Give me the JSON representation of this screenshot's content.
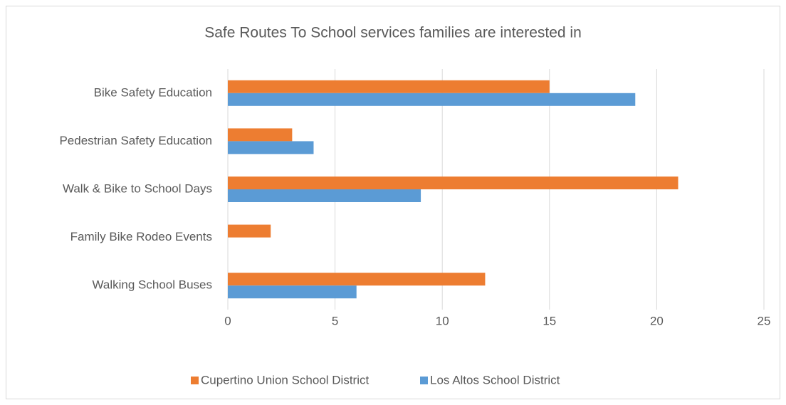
{
  "chart_data": {
    "type": "bar",
    "orientation": "horizontal",
    "title": "Safe Routes To School services families are interested in",
    "categories": [
      "Bike Safety Education",
      "Pedestrian Safety Education",
      "Walk & Bike to School Days",
      "Family Bike Rodeo Events",
      "Walking School Buses"
    ],
    "series": [
      {
        "name": "Cupertino Union School District",
        "color": "#ed7d31",
        "values": [
          15,
          3,
          21,
          2,
          12
        ]
      },
      {
        "name": "Los Altos School District",
        "color": "#5b9bd5",
        "values": [
          19,
          4,
          9,
          0,
          6
        ]
      }
    ],
    "xlim": [
      0,
      25
    ],
    "xticks": [
      0,
      5,
      10,
      15,
      20,
      25
    ],
    "grid": true,
    "legend": "bottom"
  }
}
